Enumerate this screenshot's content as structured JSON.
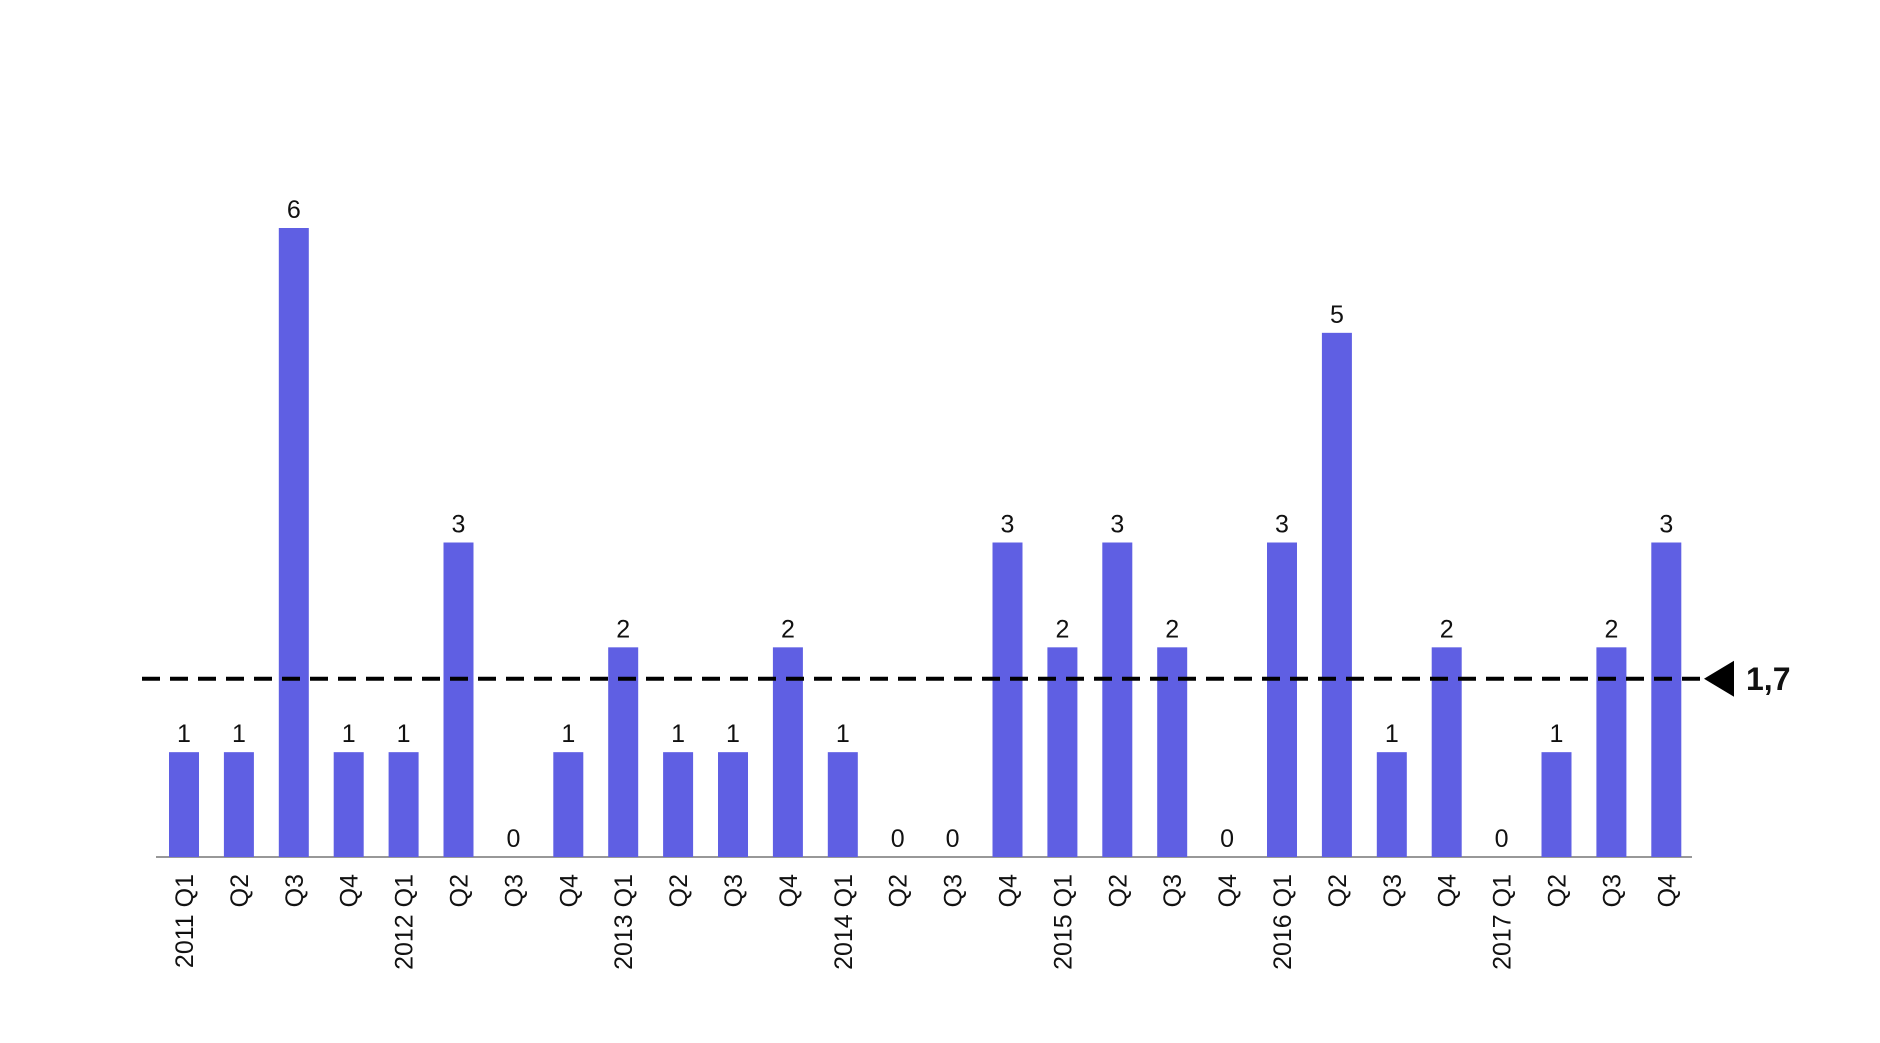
{
  "chart_data": {
    "type": "bar",
    "categories": [
      "2011 Q1",
      "Q2",
      "Q3",
      "Q4",
      "2012 Q1",
      "Q2",
      "Q3",
      "Q4",
      "2013 Q1",
      "Q2",
      "Q3",
      "Q4",
      "2014 Q1",
      "Q2",
      "Q3",
      "Q4",
      "2015 Q1",
      "Q2",
      "Q3",
      "Q4",
      "2016 Q1",
      "Q2",
      "Q3",
      "Q4",
      "2017 Q1",
      "Q2",
      "Q3",
      "Q4"
    ],
    "values": [
      1,
      1,
      6,
      1,
      1,
      3,
      0,
      1,
      2,
      1,
      1,
      2,
      1,
      0,
      0,
      3,
      2,
      3,
      2,
      0,
      3,
      5,
      1,
      2,
      0,
      1,
      2,
      3
    ],
    "color": "#5f5fe3",
    "reference_line": {
      "value": 1.7,
      "label": "1,7"
    }
  }
}
